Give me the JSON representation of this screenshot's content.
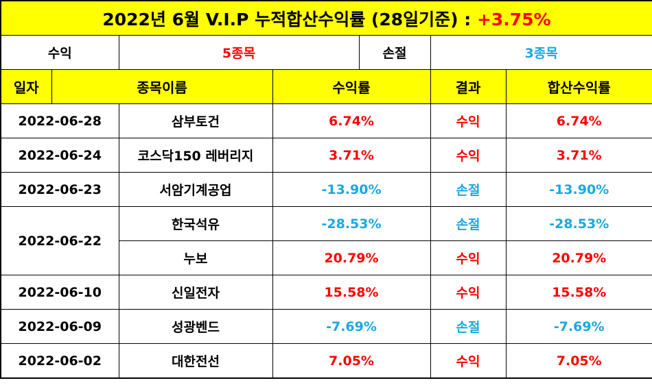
{
  "title": {
    "main": "2022년 6월 V.I.P 누적합산수익률 (28일기준) : ",
    "total": "+3.75%",
    "total_color": "#ff0000"
  },
  "summary": {
    "gain_label": "수익",
    "gain_count": "5종목",
    "loss_label": "손절",
    "loss_count": "3종목"
  },
  "headers": {
    "date": "일자",
    "name": "종목이름",
    "return": "수익률",
    "result": "결과",
    "cumulative": "합산수익률"
  },
  "colors": {
    "gain": "#ff0000",
    "loss": "#1aa7e0",
    "header_bg": "#ffff00"
  },
  "rows": [
    {
      "date": "2022-06-28",
      "name": "삼부토건",
      "ret": "6.74%",
      "result": "수익",
      "cum": "6.74%"
    },
    {
      "date": "2022-06-24",
      "name": "코스닥150 레버리지",
      "ret": "3.71%",
      "result": "수익",
      "cum": "3.71%"
    },
    {
      "date": "2022-06-23",
      "name": "서암기계공업",
      "ret": "-13.90%",
      "result": "손절",
      "cum": "-13.90%"
    },
    {
      "date": "2022-06-22",
      "name": "한국석유",
      "ret": "-28.53%",
      "result": "손절",
      "cum": "-28.53%"
    },
    {
      "date": "2022-06-22",
      "name": "누보",
      "ret": "20.79%",
      "result": "수익",
      "cum": "20.79%"
    },
    {
      "date": "2022-06-10",
      "name": "신일전자",
      "ret": "15.58%",
      "result": "수익",
      "cum": "15.58%"
    },
    {
      "date": "2022-06-09",
      "name": "성광벤드",
      "ret": "-7.69%",
      "result": "손절",
      "cum": "-7.69%"
    },
    {
      "date": "2022-06-02",
      "name": "대한전선",
      "ret": "7.05%",
      "result": "수익",
      "cum": "7.05%"
    }
  ]
}
